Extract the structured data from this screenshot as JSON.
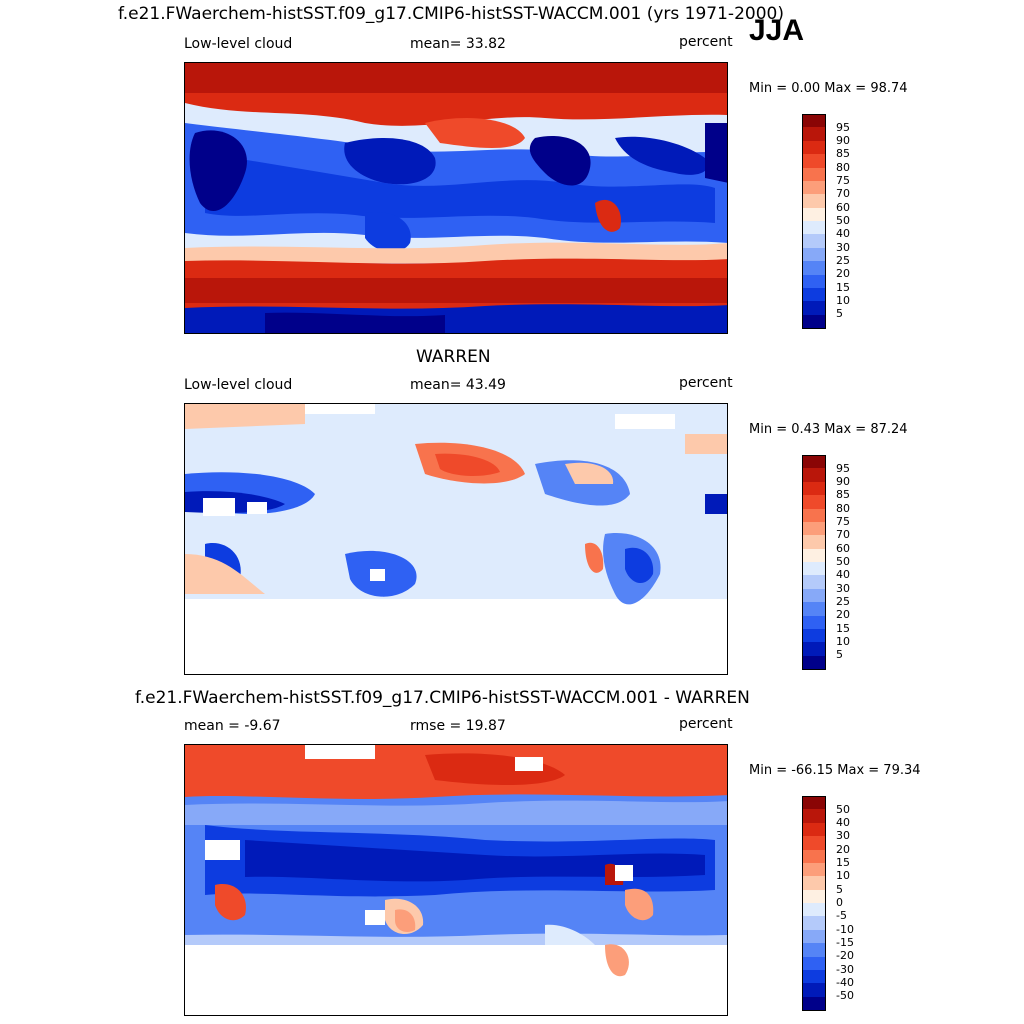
{
  "season": "JJA",
  "units": "percent",
  "palette": {
    "abs": [
      "#00008a",
      "#001ab9",
      "#0d3ce0",
      "#2f61f3",
      "#5584f6",
      "#87a9f8",
      "#b4cafa",
      "#deebfd",
      "#fef0e2",
      "#fdc9ab",
      "#fc9e7a",
      "#f8734d",
      "#ef4a2a",
      "#db2a12",
      "#b9160a",
      "#8a0505"
    ],
    "diff": [
      "#00008a",
      "#001ab9",
      "#0d3ce0",
      "#2f61f3",
      "#5584f6",
      "#87a9f8",
      "#b4cafa",
      "#deebfd",
      "#fef0e2",
      "#fdc9ab",
      "#fc9e7a",
      "#f8734d",
      "#ef4a2a",
      "#db2a12",
      "#b9160a",
      "#8a0505"
    ]
  },
  "panels": [
    {
      "title": "f.e21.FWaerchem-histSST.f09_g17.CMIP6-histSST-WACCM.001 (yrs 1971-2000)",
      "left_label": "Low-level cloud",
      "center_label": "mean=  33.82",
      "units": "percent",
      "minmax": "Min =   0.00 Max =  98.74",
      "colorbar": {
        "levels": [
          "95",
          "90",
          "85",
          "80",
          "75",
          "70",
          "60",
          "50",
          "40",
          "30",
          "25",
          "20",
          "15",
          "10",
          "5"
        ]
      }
    },
    {
      "title": "WARREN",
      "left_label": "Low-level cloud",
      "center_label": "mean=  43.49",
      "units": "percent",
      "minmax": "Min =   0.43 Max =  87.24",
      "colorbar": {
        "levels": [
          "95",
          "90",
          "85",
          "80",
          "75",
          "70",
          "60",
          "50",
          "40",
          "30",
          "25",
          "20",
          "15",
          "10",
          "5"
        ]
      }
    },
    {
      "title": "f.e21.FWaerchem-histSST.f09_g17.CMIP6-histSST-WACCM.001 - WARREN",
      "left_label": "mean =  -9.67",
      "center_label": "rmse =  19.87",
      "units": "percent",
      "minmax": "Min = -66.15 Max =  79.34",
      "colorbar": {
        "levels": [
          "50",
          "40",
          "30",
          "20",
          "15",
          "10",
          "5",
          "0",
          "-5",
          "-10",
          "-15",
          "-20",
          "-30",
          "-40",
          "-50"
        ]
      }
    }
  ]
}
